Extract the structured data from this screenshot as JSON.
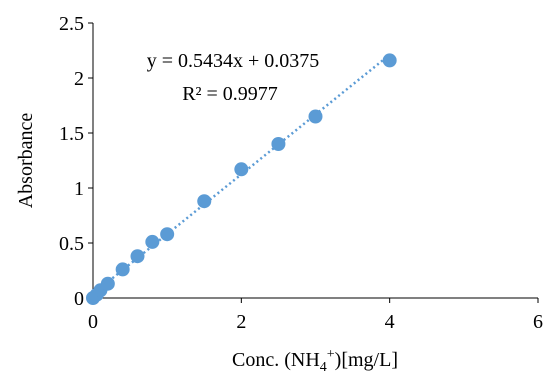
{
  "chart_data": {
    "type": "scatter",
    "title": "",
    "xlabel": {
      "prefix": "Conc. (NH",
      "subscript": "4",
      "superscript": "+",
      "suffix": ")[mg/L]"
    },
    "ylabel": "Absorbance",
    "xlim": [
      0,
      6
    ],
    "ylim": [
      0,
      2.5
    ],
    "x_ticks": [
      "0",
      "2",
      "4",
      "6"
    ],
    "y_ticks": [
      "0",
      "0.5",
      "1",
      "1.5",
      "2",
      "2.5"
    ],
    "grid": false,
    "legend": "none",
    "marker_color": "#5b9bd5",
    "trendline_color": "#5b9bd5",
    "points": [
      {
        "x": 0.0,
        "y": 0.0
      },
      {
        "x": 0.05,
        "y": 0.03
      },
      {
        "x": 0.1,
        "y": 0.07
      },
      {
        "x": 0.2,
        "y": 0.13
      },
      {
        "x": 0.4,
        "y": 0.26
      },
      {
        "x": 0.6,
        "y": 0.38
      },
      {
        "x": 0.8,
        "y": 0.51
      },
      {
        "x": 1.0,
        "y": 0.58
      },
      {
        "x": 1.5,
        "y": 0.88
      },
      {
        "x": 2.0,
        "y": 1.17
      },
      {
        "x": 2.5,
        "y": 1.4
      },
      {
        "x": 3.0,
        "y": 1.65
      },
      {
        "x": 4.0,
        "y": 2.16
      }
    ],
    "trendline": {
      "slope": 0.5434,
      "intercept": 0.0375,
      "x_range": [
        0,
        4
      ],
      "equation": "y = 0.5434x + 0.0375",
      "r_squared": "R² = 0.9977"
    }
  }
}
